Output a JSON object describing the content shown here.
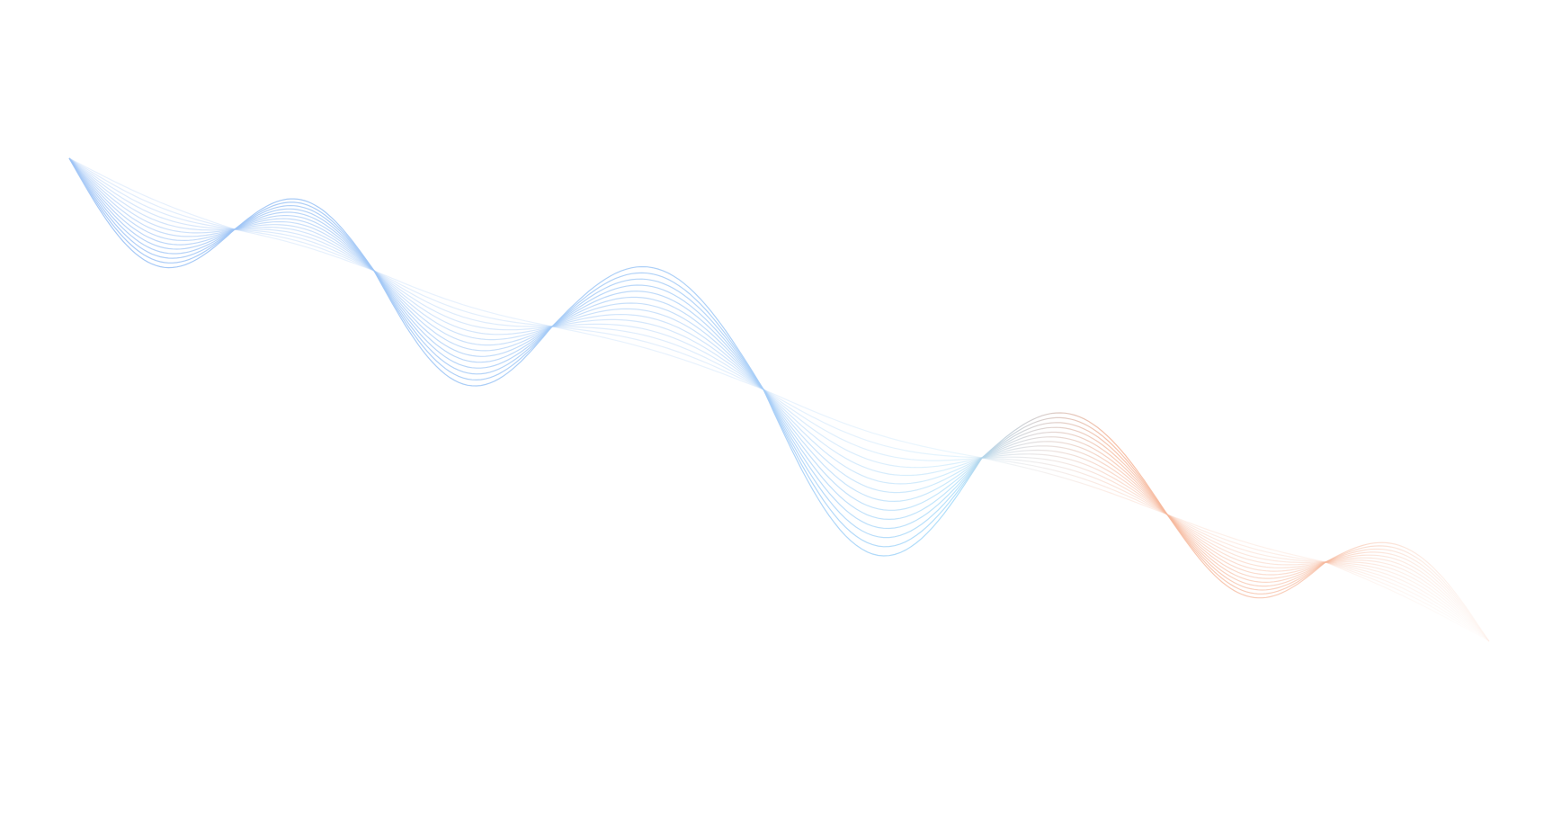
{
  "background": "#ffffff",
  "colors": {
    "wave_blue": "#9cc2f5",
    "wave_cyan": "#a8dcfa",
    "wave_orange": "#f6b89c"
  },
  "decoration": "wave-line-bundle"
}
